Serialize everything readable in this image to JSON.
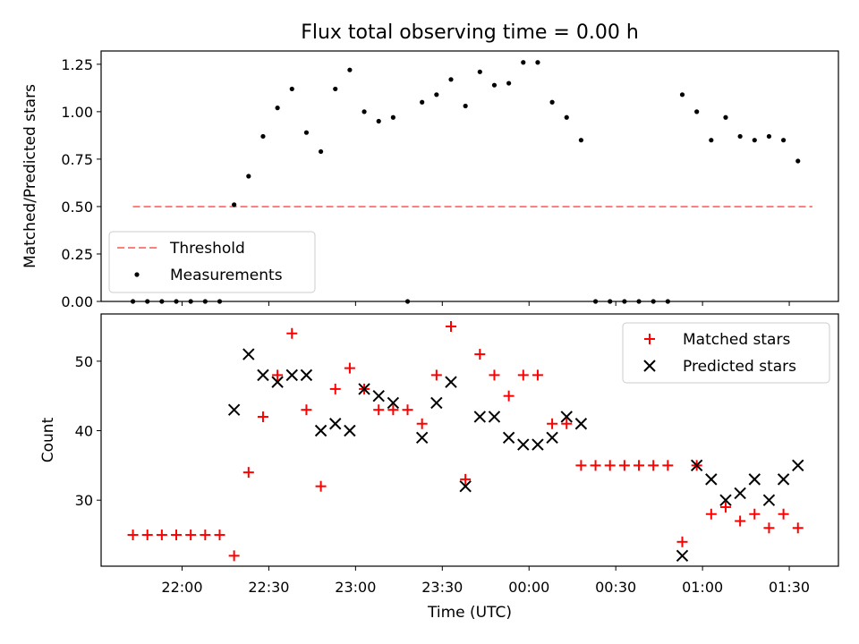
{
  "chart_data": [
    {
      "type": "scatter",
      "title": "Flux total observing time = 0.00 h",
      "xlabel": "",
      "ylabel": "Matched/Predicted stars",
      "ylim": [
        0,
        1.32
      ],
      "yticks": [
        "0.00",
        "0.25",
        "0.50",
        "0.75",
        "1.00",
        "1.25"
      ],
      "legend_position": "lower-left",
      "threshold": {
        "name": "Threshold",
        "value": 0.5,
        "x_start": "21:43",
        "x_end": "01:38",
        "color": "#ff7f7f"
      },
      "series": [
        {
          "name": "Measurements",
          "color": "#000000",
          "points": [
            [
              "21:43",
              0.0
            ],
            [
              "21:48",
              0.0
            ],
            [
              "21:53",
              0.0
            ],
            [
              "21:58",
              0.0
            ],
            [
              "22:03",
              0.0
            ],
            [
              "22:08",
              0.0
            ],
            [
              "22:13",
              0.0
            ],
            [
              "22:18",
              0.51
            ],
            [
              "22:23",
              0.66
            ],
            [
              "22:28",
              0.87
            ],
            [
              "22:33",
              1.02
            ],
            [
              "22:38",
              1.12
            ],
            [
              "22:43",
              0.89
            ],
            [
              "22:48",
              0.79
            ],
            [
              "22:53",
              1.12
            ],
            [
              "22:58",
              1.22
            ],
            [
              "23:03",
              1.0
            ],
            [
              "23:08",
              0.95
            ],
            [
              "23:13",
              0.97
            ],
            [
              "23:18",
              0.0
            ],
            [
              "23:23",
              1.05
            ],
            [
              "23:28",
              1.09
            ],
            [
              "23:33",
              1.17
            ],
            [
              "23:38",
              1.03
            ],
            [
              "23:43",
              1.21
            ],
            [
              "23:48",
              1.14
            ],
            [
              "23:53",
              1.15
            ],
            [
              "23:58",
              1.26
            ],
            [
              "00:03",
              1.26
            ],
            [
              "00:08",
              1.05
            ],
            [
              "00:13",
              0.97
            ],
            [
              "00:18",
              0.85
            ],
            [
              "00:23",
              0.0
            ],
            [
              "00:28",
              0.0
            ],
            [
              "00:33",
              0.0
            ],
            [
              "00:38",
              0.0
            ],
            [
              "00:43",
              0.0
            ],
            [
              "00:48",
              0.0
            ],
            [
              "00:53",
              1.09
            ],
            [
              "00:58",
              1.0
            ],
            [
              "01:03",
              0.85
            ],
            [
              "01:08",
              0.97
            ],
            [
              "01:13",
              0.87
            ],
            [
              "01:18",
              0.85
            ],
            [
              "01:23",
              0.87
            ],
            [
              "01:28",
              0.85
            ],
            [
              "01:33",
              0.74
            ]
          ]
        }
      ]
    },
    {
      "type": "scatter",
      "title": "",
      "xlabel": "Time (UTC)",
      "ylabel": "Count",
      "ylim": [
        20.5,
        56.8
      ],
      "yticks": [
        "30",
        "40",
        "50"
      ],
      "xticks": [
        "22:00",
        "22:30",
        "23:00",
        "23:30",
        "00:00",
        "00:30",
        "01:00",
        "01:30"
      ],
      "legend_position": "top-right",
      "series": [
        {
          "name": "Matched stars",
          "color": "#ff0000",
          "marker": "plus",
          "points": [
            [
              "21:43",
              25
            ],
            [
              "21:48",
              25
            ],
            [
              "21:53",
              25
            ],
            [
              "21:58",
              25
            ],
            [
              "22:03",
              25
            ],
            [
              "22:08",
              25
            ],
            [
              "22:13",
              25
            ],
            [
              "22:18",
              22
            ],
            [
              "22:23",
              34
            ],
            [
              "22:28",
              42
            ],
            [
              "22:33",
              48
            ],
            [
              "22:38",
              54
            ],
            [
              "22:43",
              43
            ],
            [
              "22:48",
              32
            ],
            [
              "22:53",
              46
            ],
            [
              "22:58",
              49
            ],
            [
              "23:03",
              46
            ],
            [
              "23:08",
              43
            ],
            [
              "23:13",
              43
            ],
            [
              "23:18",
              43
            ],
            [
              "23:23",
              41
            ],
            [
              "23:28",
              48
            ],
            [
              "23:33",
              55
            ],
            [
              "23:38",
              33
            ],
            [
              "23:43",
              51
            ],
            [
              "23:48",
              48
            ],
            [
              "23:53",
              45
            ],
            [
              "23:58",
              48
            ],
            [
              "00:03",
              48
            ],
            [
              "00:08",
              41
            ],
            [
              "00:13",
              41
            ],
            [
              "00:18",
              35
            ],
            [
              "00:23",
              35
            ],
            [
              "00:28",
              35
            ],
            [
              "00:33",
              35
            ],
            [
              "00:38",
              35
            ],
            [
              "00:43",
              35
            ],
            [
              "00:48",
              35
            ],
            [
              "00:53",
              24
            ],
            [
              "00:58",
              35
            ],
            [
              "01:03",
              28
            ],
            [
              "01:08",
              29
            ],
            [
              "01:13",
              27
            ],
            [
              "01:18",
              28
            ],
            [
              "01:23",
              26
            ],
            [
              "01:28",
              28
            ],
            [
              "01:33",
              26
            ]
          ]
        },
        {
          "name": "Predicted stars",
          "color": "#000000",
          "marker": "x",
          "points": [
            [
              "22:18",
              43
            ],
            [
              "22:23",
              51
            ],
            [
              "22:28",
              48
            ],
            [
              "22:33",
              47
            ],
            [
              "22:38",
              48
            ],
            [
              "22:43",
              48
            ],
            [
              "22:48",
              40
            ],
            [
              "22:53",
              41
            ],
            [
              "22:58",
              40
            ],
            [
              "23:03",
              46
            ],
            [
              "23:08",
              45
            ],
            [
              "23:13",
              44
            ],
            [
              "23:23",
              39
            ],
            [
              "23:28",
              44
            ],
            [
              "23:33",
              47
            ],
            [
              "23:38",
              32
            ],
            [
              "23:43",
              42
            ],
            [
              "23:48",
              42
            ],
            [
              "23:53",
              39
            ],
            [
              "23:58",
              38
            ],
            [
              "00:03",
              38
            ],
            [
              "00:08",
              39
            ],
            [
              "00:13",
              42
            ],
            [
              "00:18",
              41
            ],
            [
              "00:53",
              22
            ],
            [
              "00:58",
              35
            ],
            [
              "01:03",
              33
            ],
            [
              "01:08",
              30
            ],
            [
              "01:13",
              31
            ],
            [
              "01:18",
              33
            ],
            [
              "01:23",
              30
            ],
            [
              "01:28",
              33
            ],
            [
              "01:33",
              35
            ]
          ]
        }
      ]
    }
  ],
  "x_range": [
    "21:32",
    "01:47"
  ]
}
